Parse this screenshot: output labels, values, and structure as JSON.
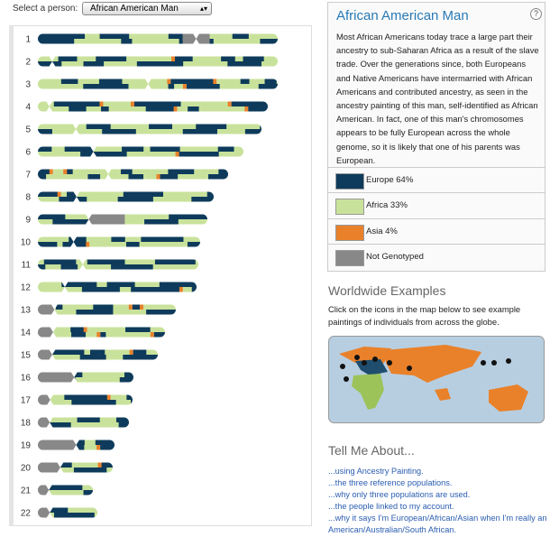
{
  "selector": {
    "label": "Select a person:",
    "selected": "African American Man"
  },
  "chromosomes": [
    "1",
    "2",
    "3",
    "4",
    "5",
    "6",
    "7",
    "8",
    "9",
    "10",
    "11",
    "12",
    "13",
    "14",
    "15",
    "16",
    "17",
    "18",
    "19",
    "20",
    "21",
    "22"
  ],
  "panel": {
    "title": "African American Man",
    "help": "?",
    "description": "Most African Americans today trace a large part their ancestry to sub-Saharan Africa as a result of the slave trade. Over the generations since, both Europeans and Native Americans have intermarried with African Americans and contributed ancestry, as seen in the ancestry painting of this man, self-identified as African American. In fact, one of this man's chromosomes appears to be fully European across the whole genome, so it is likely that one of his parents was European.",
    "legend": [
      "Europe 64%",
      "Africa 33%",
      "Asia 4%",
      "Not Genotyped"
    ]
  },
  "examples": {
    "title": "Worldwide Examples",
    "text": "Click on the icons in the map below to see example paintings of individuals from across the globe."
  },
  "tell_me": {
    "title": "Tell Me About...",
    "links": [
      "...using Ancestry Painting.",
      "...the three reference populations.",
      "...why only three populations are used.",
      "...the people linked to my account.",
      "...why it says I'm European/African/Asian when I'm really an American/Australian/South African."
    ]
  }
}
